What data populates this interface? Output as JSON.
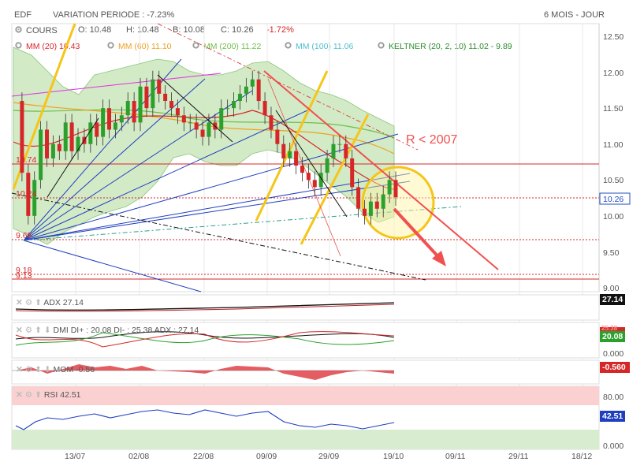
{
  "header": {
    "symbol": "EDF",
    "variation": "VARIATION PERIODE : -7.23%",
    "period": "6 MOIS - JOUR"
  },
  "quote": {
    "cours_label": "COURS",
    "open": "O: 10.48",
    "high": "H: 10.48",
    "low": "B: 10.08",
    "close_label": "C: 10.26",
    "change": "-1.72%"
  },
  "indicators": [
    {
      "label": "MM (20)",
      "value": "10.43",
      "color": "#d9272e"
    },
    {
      "label": "MM (60)",
      "value": "11.10",
      "color": "#f0a020"
    },
    {
      "label": "MM (200)",
      "value": "11.22",
      "color": "#6fbf4a"
    },
    {
      "label": "MM (100)",
      "value": "11.06",
      "color": "#4fbfd0"
    },
    {
      "label": "KELTNER (20, 2, 10)",
      "value": "11.02 - 9.89",
      "color": "#2e8b2e"
    }
  ],
  "annotations": {
    "resistance_note": "R < 2007",
    "level_1074": "10.74",
    "level_1024": "10.24",
    "level_965": "9.65",
    "level_918": "9.18",
    "level_913": "9.13"
  },
  "panels": {
    "adx": {
      "label": "ADX",
      "value": "27.14",
      "tag": "27.14"
    },
    "dmi": {
      "label": "DMI DI+ : 20.08 DI- : 25.38 ADX : 27.14",
      "tag_top": "25.38",
      "tag": "20.08",
      "bottom": "0.000"
    },
    "mom": {
      "label": "MOM",
      "value": "-0.56",
      "tag": "-0.560"
    },
    "rsi": {
      "label": "RSI",
      "value": "42.51",
      "tag": "42.51",
      "top": "80.00",
      "bottom": "0.000"
    }
  },
  "colors": {
    "bull": "#2ca02c",
    "bear": "#d62728",
    "keltner_fill": "#cfe8c0",
    "current_price": "#1f4fbf"
  },
  "chart_data": {
    "type": "candlestick",
    "price_axis": {
      "min": 9.0,
      "max": 12.5,
      "ticks": [
        "12.50",
        "12.00",
        "11.50",
        "11.00",
        "10.50",
        "10.00",
        "9.50",
        "9.00"
      ]
    },
    "x_ticks": [
      "13/07",
      "02/08",
      "22/08",
      "09/09",
      "29/09",
      "19/10",
      "09/11",
      "29/11",
      "18/12"
    ],
    "last_price": "10.26",
    "horizontal_levels": [
      10.74,
      10.24,
      9.65,
      9.18,
      9.13
    ],
    "closes": [
      11.6,
      10.6,
      10.0,
      10.5,
      11.2,
      10.8,
      11.0,
      10.9,
      11.3,
      10.9,
      11.1,
      11.0,
      11.3,
      11.1,
      11.5,
      11.2,
      11.3,
      11.4,
      11.6,
      11.3,
      11.8,
      11.5,
      11.9,
      11.7,
      11.6,
      11.5,
      11.4,
      11.3,
      11.3,
      11.2,
      11.1,
      11.3,
      11.2,
      11.5,
      11.5,
      11.6,
      11.7,
      11.8,
      11.9,
      11.6,
      11.4,
      11.2,
      11.0,
      10.8,
      10.9,
      10.7,
      10.6,
      10.5,
      10.4,
      10.6,
      10.8,
      11.0,
      11.0,
      10.8,
      10.4,
      10.1,
      10.0,
      10.2,
      10.1,
      10.3,
      10.5,
      10.26
    ]
  }
}
